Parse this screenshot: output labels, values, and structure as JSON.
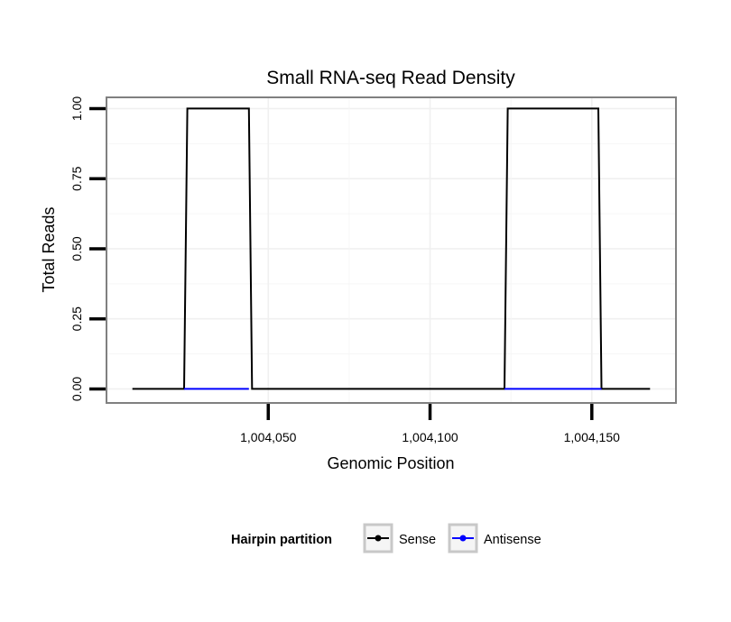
{
  "chart_data": {
    "type": "line",
    "title": "Small RNA-seq Read Density",
    "xlabel": "Genomic Position",
    "ylabel": "Total Reads",
    "xlim": [
      1004000,
      1004176
    ],
    "ylim": [
      -0.05,
      1.04
    ],
    "x_ticks": [
      1004050,
      1004100,
      1004150
    ],
    "x_tick_labels": [
      "1,004,050",
      "1,004,100",
      "1,004,150"
    ],
    "y_ticks": [
      0,
      0.25,
      0.5,
      0.75,
      1
    ],
    "y_tick_labels": [
      "0.00",
      "0.25",
      "0.50",
      "0.75",
      "1.00"
    ],
    "grid": true,
    "legend_title": "Hairpin partition",
    "legend_position": "bottom",
    "series": [
      {
        "name": "Sense",
        "color": "#000000",
        "x": [
          1004008,
          1004024,
          1004025,
          1004044,
          1004045,
          1004123,
          1004124,
          1004152,
          1004153,
          1004168
        ],
        "y": [
          0,
          0,
          1,
          1,
          0,
          0,
          1,
          1,
          0,
          0
        ]
      },
      {
        "name": "Antisense",
        "color": "#0000ff",
        "x": [
          1004024,
          1004044
        ],
        "y": [
          0,
          0
        ],
        "x2": [
          1004123,
          1004153
        ],
        "y2": [
          0,
          0
        ]
      }
    ]
  }
}
